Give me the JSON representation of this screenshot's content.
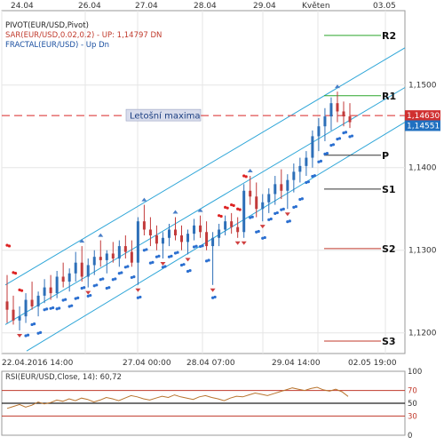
{
  "chart_data": [
    {
      "type": "candlestick",
      "top_date_labels": [
        "24.04",
        "26.04",
        "27.04",
        "28.04",
        "29.04",
        "Květen",
        "03.05"
      ],
      "bottom_date_labels": [
        "22.04.2016 14:00",
        "27.04 00:00",
        "28.04 07:00",
        "29.04 14:00",
        "02.05 19:00"
      ],
      "ylim": [
        1.1175,
        1.159
      ],
      "y_ticks": [
        {
          "value": 1.15,
          "label": "1,1500"
        },
        {
          "value": 1.14,
          "label": "1,1400"
        },
        {
          "value": 1.13,
          "label": "1,1300"
        },
        {
          "value": 1.12,
          "label": "1,1200"
        }
      ],
      "price_tags": [
        {
          "value": 1.1463,
          "label": "1,14630",
          "color": "#d03030"
        },
        {
          "value": 1.14551,
          "label": "1,14551",
          "color": "#2070c0"
        }
      ],
      "indicators": [
        {
          "name": "PIVOT(EUR/USD,Pivot)",
          "color": "#222222"
        },
        {
          "name": "SAR(EUR/USD,0.02,0.2)",
          "extra": " - UP: 1,14797  DN",
          "color": "#c0392b"
        },
        {
          "name": "FRACTAL(EUR/USD)",
          "extra": " - Up  Dn",
          "color": "#1a4fa0"
        }
      ],
      "pivot_levels": [
        {
          "name": "R2",
          "value": 1.156,
          "color": "#2aa52a"
        },
        {
          "name": "R1",
          "value": 1.1487,
          "color": "#2aa52a"
        },
        {
          "name": "P",
          "value": 1.1415,
          "color": "#333333"
        },
        {
          "name": "S1",
          "value": 1.1374,
          "color": "#333333"
        },
        {
          "name": "S2",
          "value": 1.1302,
          "color": "#c0392b"
        },
        {
          "name": "S3",
          "value": 1.119,
          "color": "#c0392b"
        }
      ],
      "annotation": {
        "label": "Letošní maxima",
        "value": 1.1463
      },
      "series": [
        {
          "values": [
            [
              0,
              1.1238,
              1.127,
              1.1212,
              1.1228
            ],
            [
              4,
              1.1228,
              1.1245,
              1.121,
              1.1215
            ],
            [
              8,
              1.1215,
              1.1232,
              1.1203,
              1.122
            ],
            [
              12,
              1.122,
              1.1248,
              1.1212,
              1.124
            ],
            [
              16,
              1.124,
              1.1262,
              1.1228,
              1.1232
            ],
            [
              20,
              1.1232,
              1.125,
              1.122,
              1.1245
            ],
            [
              24,
              1.1245,
              1.1265,
              1.1236,
              1.1255
            ],
            [
              28,
              1.1255,
              1.127,
              1.124,
              1.1248
            ],
            [
              32,
              1.1248,
              1.1275,
              1.1242,
              1.1268
            ],
            [
              36,
              1.1268,
              1.1285,
              1.1255,
              1.1262
            ],
            [
              40,
              1.1262,
              1.1278,
              1.125,
              1.1272
            ],
            [
              44,
              1.1272,
              1.1298,
              1.1262,
              1.1285
            ],
            [
              48,
              1.1285,
              1.1305,
              1.1262,
              1.1268
            ],
            [
              52,
              1.1268,
              1.129,
              1.1255,
              1.1282
            ],
            [
              56,
              1.1282,
              1.13,
              1.127,
              1.1292
            ],
            [
              60,
              1.1292,
              1.1312,
              1.128,
              1.1288
            ],
            [
              64,
              1.1288,
              1.13,
              1.1272,
              1.1296
            ],
            [
              68,
              1.1296,
              1.131,
              1.1285,
              1.129
            ],
            [
              72,
              1.129,
              1.1312,
              1.128,
              1.1305
            ],
            [
              76,
              1.1305,
              1.1318,
              1.129,
              1.1298
            ],
            [
              80,
              1.1298,
              1.1312,
              1.128,
              1.1285
            ],
            [
              84,
              1.1285,
              1.134,
              1.1258,
              1.1335
            ],
            [
              88,
              1.1335,
              1.1355,
              1.1318,
              1.1325
            ],
            [
              92,
              1.1325,
              1.134,
              1.1305,
              1.1318
            ],
            [
              96,
              1.1318,
              1.133,
              1.13,
              1.1308
            ],
            [
              100,
              1.1308,
              1.1322,
              1.129,
              1.1315
            ],
            [
              104,
              1.1315,
              1.1332,
              1.1305,
              1.1325
            ],
            [
              108,
              1.1325,
              1.134,
              1.1312,
              1.1318
            ],
            [
              112,
              1.1318,
              1.133,
              1.13,
              1.131
            ],
            [
              116,
              1.131,
              1.1325,
              1.1295,
              1.132
            ],
            [
              120,
              1.132,
              1.1338,
              1.1312,
              1.133
            ],
            [
              124,
              1.133,
              1.1342,
              1.1315,
              1.1322
            ],
            [
              128,
              1.1322,
              1.1335,
              1.13,
              1.1305
            ],
            [
              132,
              1.1305,
              1.1322,
              1.1258,
              1.1315
            ],
            [
              136,
              1.1315,
              1.1332,
              1.1305,
              1.1325
            ],
            [
              140,
              1.1325,
              1.1342,
              1.1318,
              1.1335
            ],
            [
              144,
              1.1335,
              1.1345,
              1.132,
              1.1328
            ],
            [
              148,
              1.1328,
              1.134,
              1.1315,
              1.1322
            ],
            [
              152,
              1.1322,
              1.138,
              1.1315,
              1.1372
            ],
            [
              156,
              1.1372,
              1.139,
              1.1355,
              1.1365
            ],
            [
              160,
              1.1365,
              1.1382,
              1.134,
              1.135
            ],
            [
              164,
              1.135,
              1.1368,
              1.1335,
              1.1358
            ],
            [
              168,
              1.1358,
              1.1375,
              1.1345,
              1.1368
            ],
            [
              172,
              1.1368,
              1.139,
              1.1355,
              1.138
            ],
            [
              176,
              1.138,
              1.1398,
              1.1362,
              1.1372
            ],
            [
              180,
              1.1372,
              1.1392,
              1.135,
              1.1385
            ],
            [
              184,
              1.1385,
              1.1405,
              1.137,
              1.1395
            ],
            [
              188,
              1.1395,
              1.1412,
              1.1382,
              1.1402
            ],
            [
              192,
              1.1402,
              1.142,
              1.139,
              1.1412
            ],
            [
              196,
              1.1412,
              1.1445,
              1.14,
              1.1438
            ],
            [
              200,
              1.1438,
              1.146,
              1.142,
              1.145
            ],
            [
              204,
              1.145,
              1.1472,
              1.1432,
              1.1462
            ],
            [
              208,
              1.1462,
              1.1485,
              1.1445,
              1.1478
            ],
            [
              212,
              1.1478,
              1.1492,
              1.1455,
              1.1468
            ],
            [
              216,
              1.1468,
              1.148,
              1.145,
              1.1462
            ],
            [
              220,
              1.1462,
              1.1478,
              1.1448,
              1.1455
            ]
          ]
        }
      ]
    },
    {
      "type": "line",
      "title": "RSI(EUR/USD,Close, 14): 60,72",
      "ylim": [
        0,
        100
      ],
      "levels": [
        {
          "value": 100,
          "label": "100"
        },
        {
          "value": 70,
          "label": "70",
          "color": "#c0392b"
        },
        {
          "value": 50,
          "label": "50"
        },
        {
          "value": 30,
          "label": "30",
          "color": "#c0392b"
        },
        {
          "value": 0,
          "label": "0"
        }
      ],
      "series": [
        {
          "values": [
            42,
            45,
            48,
            44,
            47,
            52,
            49,
            51,
            55,
            53,
            57,
            54,
            58,
            56,
            52,
            55,
            59,
            57,
            54,
            58,
            62,
            60,
            57,
            55,
            58,
            61,
            59,
            63,
            60,
            58,
            56,
            60,
            62,
            59,
            57,
            54,
            58,
            61,
            60,
            63,
            66,
            64,
            62,
            65,
            68,
            71,
            74,
            72,
            70,
            73,
            75,
            71,
            69,
            72,
            68,
            60.72
          ]
        }
      ]
    }
  ]
}
